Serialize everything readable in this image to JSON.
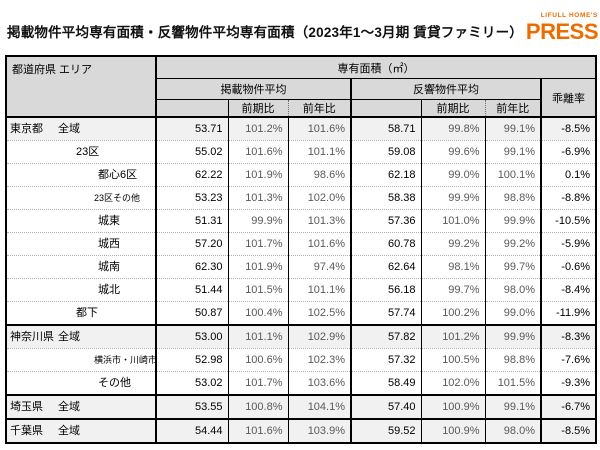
{
  "title": "掲載物件平均専有面積・反響物件平均専有面積（2023年1～3月期 賃貸ファミリー）",
  "logo": {
    "brand": "LIFULL HOME'S",
    "product": "PRESS"
  },
  "colors": {
    "accent_orange": "#ed6c00",
    "header_bg": "#d9d9d9",
    "highlight_row_bg": "#f1f1f1",
    "ratio_text": "#595959",
    "border": "#000000"
  },
  "table": {
    "corner_header": "都道府県 エリア",
    "unit_header": "専有面積（㎡）",
    "groups": [
      {
        "label": "掲載物件平均",
        "sub": [
          "前期比",
          "前年比"
        ]
      },
      {
        "label": "反響物件平均",
        "sub": [
          "前期比",
          "前年比"
        ]
      }
    ],
    "deviation_header": "乖離率",
    "column_keys": [
      "listed-avg",
      "listed-qoq",
      "listed-yoy",
      "response-avg",
      "response-qoq",
      "response-yoy",
      "deviation-rate"
    ],
    "rows": [
      {
        "pref": "東京都",
        "area": "全域",
        "indent": 0,
        "small": false,
        "highlight": true,
        "group_start": false,
        "values": [
          "53.71",
          "101.2%",
          "101.6%",
          "58.71",
          "99.8%",
          "99.1%",
          "-8.5%"
        ]
      },
      {
        "pref": "",
        "area": "23区",
        "indent": 1,
        "small": false,
        "highlight": false,
        "group_start": false,
        "values": [
          "55.02",
          "101.6%",
          "101.1%",
          "59.08",
          "99.6%",
          "99.1%",
          "-6.9%"
        ]
      },
      {
        "pref": "",
        "area": "都心6区",
        "indent": 2,
        "small": false,
        "highlight": false,
        "group_start": false,
        "values": [
          "62.22",
          "101.9%",
          "98.6%",
          "62.18",
          "99.0%",
          "100.1%",
          "0.1%"
        ]
      },
      {
        "pref": "",
        "area": "23区その他",
        "indent": 2,
        "small": true,
        "highlight": false,
        "group_start": false,
        "values": [
          "53.23",
          "101.3%",
          "102.0%",
          "58.38",
          "99.9%",
          "98.8%",
          "-8.8%"
        ]
      },
      {
        "pref": "",
        "area": "城東",
        "indent": 2,
        "small": false,
        "highlight": false,
        "group_start": false,
        "values": [
          "51.31",
          "99.9%",
          "101.3%",
          "57.36",
          "101.0%",
          "99.9%",
          "-10.5%"
        ]
      },
      {
        "pref": "",
        "area": "城西",
        "indent": 2,
        "small": false,
        "highlight": false,
        "group_start": false,
        "values": [
          "57.20",
          "101.7%",
          "101.6%",
          "60.78",
          "99.2%",
          "99.2%",
          "-5.9%"
        ]
      },
      {
        "pref": "",
        "area": "城南",
        "indent": 2,
        "small": false,
        "highlight": false,
        "group_start": false,
        "values": [
          "62.30",
          "101.9%",
          "97.4%",
          "62.64",
          "98.1%",
          "99.7%",
          "-0.6%"
        ]
      },
      {
        "pref": "",
        "area": "城北",
        "indent": 2,
        "small": false,
        "highlight": false,
        "group_start": false,
        "values": [
          "51.44",
          "101.5%",
          "101.1%",
          "56.18",
          "99.7%",
          "98.0%",
          "-8.4%"
        ]
      },
      {
        "pref": "",
        "area": "都下",
        "indent": 1,
        "small": false,
        "highlight": false,
        "group_start": false,
        "values": [
          "50.87",
          "100.4%",
          "102.5%",
          "57.74",
          "100.2%",
          "99.0%",
          "-11.9%"
        ]
      },
      {
        "pref": "神奈川県",
        "area": "全域",
        "indent": 0,
        "small": false,
        "highlight": true,
        "group_start": true,
        "values": [
          "53.00",
          "101.1%",
          "102.9%",
          "57.82",
          "101.2%",
          "99.9%",
          "-8.3%"
        ]
      },
      {
        "pref": "",
        "area": "横浜市・川崎市",
        "indent": 2,
        "small": true,
        "highlight": false,
        "group_start": false,
        "values": [
          "52.98",
          "100.6%",
          "102.3%",
          "57.32",
          "100.5%",
          "98.8%",
          "-7.6%"
        ]
      },
      {
        "pref": "",
        "area": "その他",
        "indent": 2,
        "small": false,
        "highlight": false,
        "group_start": false,
        "values": [
          "53.02",
          "101.7%",
          "103.6%",
          "58.49",
          "102.0%",
          "101.5%",
          "-9.3%"
        ]
      },
      {
        "pref": "埼玉県",
        "area": "全域",
        "indent": 0,
        "small": false,
        "highlight": true,
        "group_start": true,
        "values": [
          "53.55",
          "100.8%",
          "104.1%",
          "57.40",
          "100.9%",
          "99.1%",
          "-6.7%"
        ]
      },
      {
        "pref": "千葉県",
        "area": "全域",
        "indent": 0,
        "small": false,
        "highlight": true,
        "group_start": true,
        "values": [
          "54.44",
          "101.6%",
          "103.9%",
          "59.52",
          "100.9%",
          "98.0%",
          "-8.5%"
        ]
      }
    ]
  }
}
